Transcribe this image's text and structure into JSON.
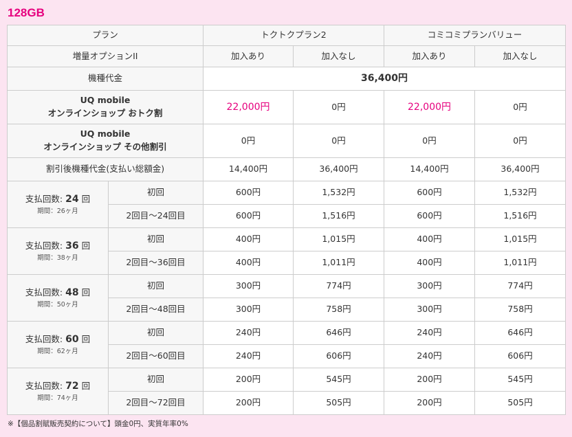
{
  "title": "128GB",
  "header": {
    "plan_label": "プラン",
    "plans": [
      "トクトクプラン2",
      "コミコミプランバリュー"
    ],
    "option_label": "増量オプションII",
    "options": [
      "加入あり",
      "加入なし",
      "加入あり",
      "加入なし"
    ]
  },
  "device_price": {
    "label": "機種代金",
    "value": "36,400円"
  },
  "discount1": {
    "label_line1": "UQ mobile",
    "label_line2": "オンラインショップ おトク割",
    "values": [
      "22,000円",
      "0円",
      "22,000円",
      "0円"
    ]
  },
  "discount2": {
    "label_line1": "UQ mobile",
    "label_line2": "オンラインショップ その他割引",
    "values": [
      "0円",
      "0円",
      "0円",
      "0円"
    ]
  },
  "after_discount": {
    "label": "割引後機種代金(支払い総額金)",
    "values": [
      "14,400円",
      "36,400円",
      "14,400円",
      "36,400円"
    ]
  },
  "installments": [
    {
      "prefix": "支払回数: ",
      "count": "24",
      "suffix": " 回",
      "period": "期間：26ヶ月",
      "first_label": "初回",
      "rest_label": "2回目〜24回目",
      "first": [
        "600円",
        "1,532円",
        "600円",
        "1,532円"
      ],
      "rest": [
        "600円",
        "1,516円",
        "600円",
        "1,516円"
      ]
    },
    {
      "prefix": "支払回数: ",
      "count": "36",
      "suffix": " 回",
      "period": "期間：38ヶ月",
      "first_label": "初回",
      "rest_label": "2回目〜36回目",
      "first": [
        "400円",
        "1,015円",
        "400円",
        "1,015円"
      ],
      "rest": [
        "400円",
        "1,011円",
        "400円",
        "1,011円"
      ]
    },
    {
      "prefix": "支払回数: ",
      "count": "48",
      "suffix": " 回",
      "period": "期間：50ヶ月",
      "first_label": "初回",
      "rest_label": "2回目〜48回目",
      "first": [
        "300円",
        "774円",
        "300円",
        "774円"
      ],
      "rest": [
        "300円",
        "758円",
        "300円",
        "758円"
      ]
    },
    {
      "prefix": "支払回数: ",
      "count": "60",
      "suffix": " 回",
      "period": "期間：62ヶ月",
      "first_label": "初回",
      "rest_label": "2回目〜60回目",
      "first": [
        "240円",
        "646円",
        "240円",
        "646円"
      ],
      "rest": [
        "240円",
        "606円",
        "240円",
        "606円"
      ]
    },
    {
      "prefix": "支払回数: ",
      "count": "72",
      "suffix": " 回",
      "period": "期間：74ヶ月",
      "first_label": "初回",
      "rest_label": "2回目〜72回目",
      "first": [
        "200円",
        "545円",
        "200円",
        "545円"
      ],
      "rest": [
        "200円",
        "505円",
        "200円",
        "505円"
      ]
    }
  ],
  "footnote": "※【個品割賦販売契約について】頭金0円、実質年率0%",
  "colors": {
    "accent": "#e6007e",
    "background": "#fce4f1"
  }
}
